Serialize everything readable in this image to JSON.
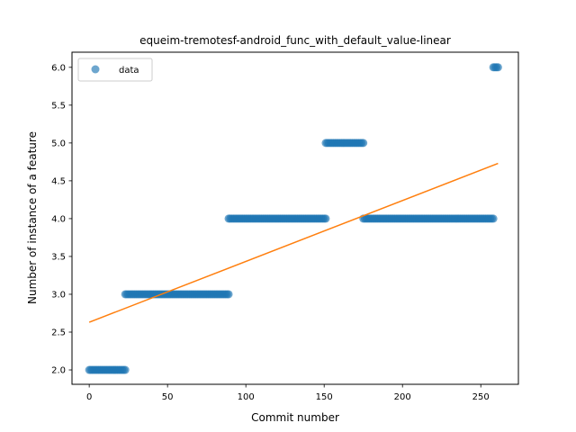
{
  "chart_data": {
    "type": "scatter",
    "title": "equeim-tremotesf-android_func_with_default_value-linear",
    "xlabel": "Commit number",
    "ylabel": "Number of instance of a feature",
    "xlim": [
      -11,
      274
    ],
    "ylim": [
      1.81,
      6.2
    ],
    "xticks": [
      0,
      50,
      100,
      150,
      200,
      250
    ],
    "xtick_labels": [
      "0",
      "50",
      "100",
      "150",
      "200",
      "250"
    ],
    "yticks": [
      2.0,
      2.5,
      3.0,
      3.5,
      4.0,
      4.5,
      5.0,
      5.5,
      6.0
    ],
    "ytick_labels": [
      "2.0",
      "2.5",
      "3.0",
      "3.5",
      "4.0",
      "4.5",
      "5.0",
      "5.5",
      "6.0"
    ],
    "grid": false,
    "legend": {
      "placement": "upper-left",
      "entries": [
        "data"
      ]
    },
    "colors": {
      "data": "#1f77b4",
      "fit": "#ff7f0e"
    },
    "series": [
      {
        "name": "data",
        "kind": "scatter",
        "segments": [
          {
            "x_start": 0,
            "x_end": 23,
            "y": 2
          },
          {
            "x_start": 23,
            "x_end": 89,
            "y": 3
          },
          {
            "x_start": 89,
            "x_end": 151,
            "y": 4
          },
          {
            "x_start": 151,
            "x_end": 175,
            "y": 5
          },
          {
            "x_start": 175,
            "x_end": 258,
            "y": 4
          },
          {
            "x_start": 258,
            "x_end": 261,
            "y": 6
          }
        ]
      },
      {
        "kind": "line",
        "x": [
          0,
          261
        ],
        "y": [
          2.63,
          4.73
        ]
      }
    ]
  }
}
